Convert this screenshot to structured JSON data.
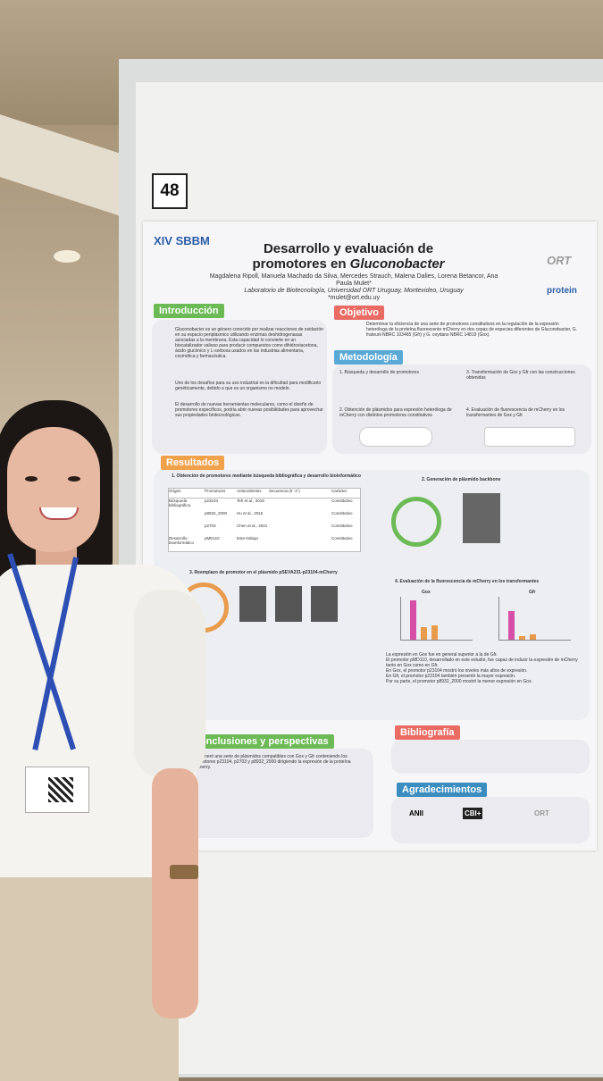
{
  "board_number": "48",
  "poster": {
    "logo_left": "XIV SBBM",
    "title_line1": "Desarrollo y evaluación de",
    "title_line2_prefix": "promotores en ",
    "title_line2_italic": "Gluconobacter",
    "authors": "Magdalena Ripoll, Manuela Machado da Silva, Mercedes Strauch, Malena Dalies, Lorena Betancor, Ana Paula Mulet*",
    "affiliation": "Laboratorio de Biotecnología, Universidad ORT Uruguay, Montevideo, Uruguay",
    "email": "*mulet@ort.edu.uy",
    "logo_ort": "ORT",
    "logo_protein": "protein",
    "sections": {
      "introduccion": "Introducción",
      "objetivo": "Objetivo",
      "metodologia": "Metodología",
      "resultados": "Resultados",
      "conclusiones": "Conclusiones y perspectivas",
      "bibliografia": "Bibliografía",
      "agradecimientos": "Agradecimientos"
    },
    "intro_text": "Gluconobacter es un género conocido por realizar reacciones de oxidación en su espacio periplásmico utilizando enzimas deshidrogenasas asociadas a la membrana. Esta capacidad lo convierte en un biocatalizador valioso para producir compuestos como dihidroxiacetona, ácido glucónico y L-sorbosa usados en las industrias alimentaria, cosmética y farmacéutica.",
    "intro_text2": "Uno de los desafíos para su uso industrial es la dificultad para modificarlo genéticamente, debido a que es un organismo no modelo.",
    "intro_text3": "El desarrollo de nuevas herramientas moleculares, como el diseño de promotores específicos, podría abrir nuevas posibilidades para aprovechar sus propiedades biotecnológicas.",
    "objetivo_text": "Determinar la eficiencia de una serie de promotores constitutivos en la regulación de la expresión heteróloga de la proteína fluorescente mCherry en dos cepas de especies diferentes de Gluconobacter, G. frateurii NBRC 103465 (Gfr) y G. oxydans NBRC 14819 (Gox).",
    "met_steps": [
      "1. Búsqueda y desarrollo de promotores",
      "3. Transformación de Gox y Gfr con las construcciones obtenidas",
      "2. Obtención de plásmidos para expresión heteróloga de mCherry con distintos promotores constitutivos",
      "4. Evaluación de fluorescencia de mCherry en los transformantes de Gox y Gfr"
    ],
    "res_headers": [
      "1. Obtención de promotores mediante búsqueda bibliográfica y desarrollo bioinformático",
      "2. Generación de plásmido backbone",
      "3. Reemplazo de promotor en el plásmido pSEVA231-p23104-mCherry",
      "4. Evaluación de la fluorescencia de mCherry en los transformantes"
    ],
    "table_headers": [
      "Origen",
      "Promotores",
      "Antecedentes",
      "Secuencia (5´-3´)",
      "Carácter"
    ],
    "table_rows": [
      [
        "Búsqueda bibliográfica",
        "p23104",
        "Teh et al., 2019",
        "",
        "Constitutivo"
      ],
      [
        "",
        "p8932_2000",
        "Hu et al., 2015",
        "",
        "Constitutivo"
      ],
      [
        "",
        "p2703",
        "Chen et al., 2021",
        "",
        "Constitutivo"
      ],
      [
        "Desarrollo bioinformático",
        "pMD110",
        "Este trabajo",
        "",
        "Constitutivo"
      ]
    ],
    "chart_labels": [
      "Gox",
      "Gfr"
    ],
    "bullets": [
      "La expresión en Gox fue en general superior a la de Gfr.",
      "El promotor pMD110, desarrollado en este estudio, fue capaz de inducir la expresión de mCherry tanto en Gox como en Gfr.",
      "En Gox, el promotor p23104 mostró los niveles más altos de expresión.",
      "En Gfr, el promotor p23104 también presentó la mayor expresión.",
      "Por su parte, el promotor p8932_2000 mostró la menor expresión en Gox."
    ],
    "conclusion_text": "Se generó una serie de plásmidos compatibles con Gox y Gfr conteniendo los promotores p23104, p2703 y p8932_2000 dirigiendo la expresión de la proteína mCherry.",
    "footer_logos": [
      "ANII",
      "CBI+",
      "ORT"
    ]
  }
}
